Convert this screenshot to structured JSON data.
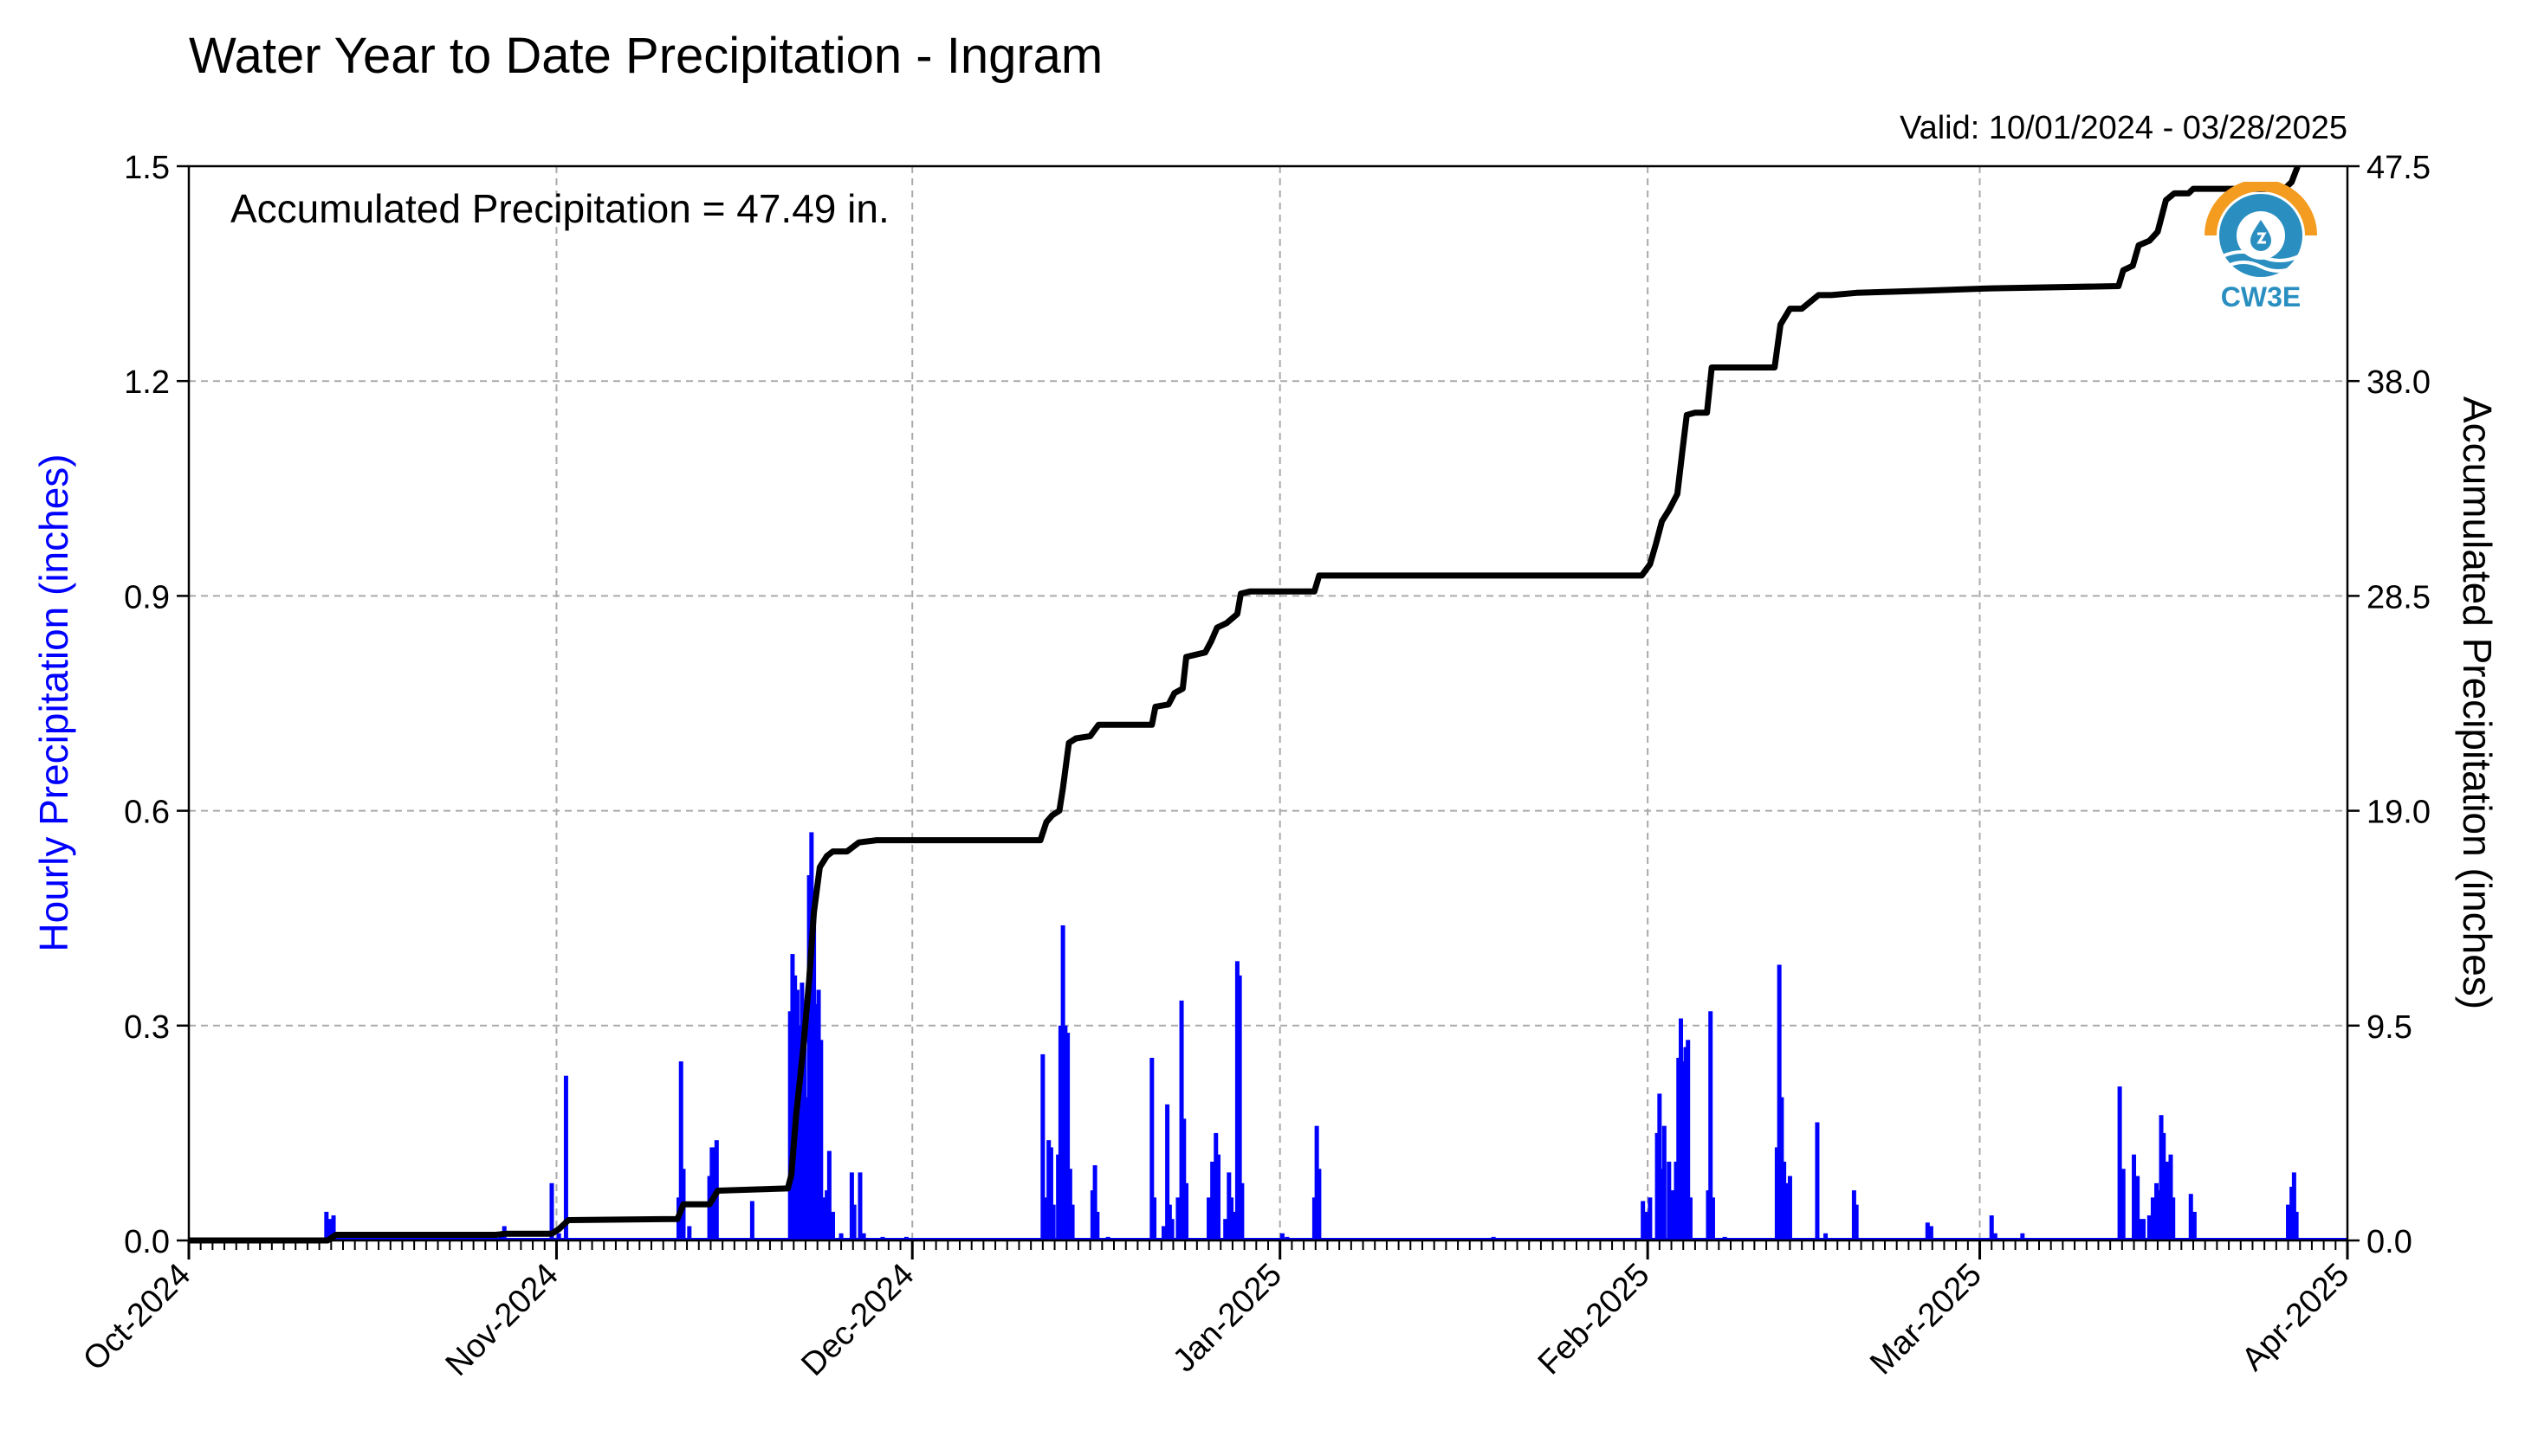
{
  "chart_data": {
    "type": "bar+line",
    "title": "Water Year to Date Precipitation - Ingram",
    "valid_label": "Valid: 10/01/2024 - 03/28/2025",
    "annotation": "Accumulated Precipitation = 47.49 in.",
    "ylabel_left": "Hourly Precipitation (inches)",
    "ylabel_right": "Accumulated Precipitation (inches)",
    "ylim_left": [
      0,
      1.5
    ],
    "ylim_right": [
      0,
      47.5
    ],
    "yticks_left": [
      "0.0",
      "0.3",
      "0.6",
      "0.9",
      "1.2",
      "1.5"
    ],
    "yticks_right": [
      "0.0",
      "9.5",
      "19.0",
      "28.5",
      "38.0",
      "47.5"
    ],
    "xlim_days": [
      0,
      182
    ],
    "x_month_ticks": [
      {
        "label": "Oct-2024",
        "day": 0
      },
      {
        "label": "Nov-2024",
        "day": 31
      },
      {
        "label": "Dec-2024",
        "day": 61
      },
      {
        "label": "Jan-2025",
        "day": 92
      },
      {
        "label": "Feb-2025",
        "day": 123
      },
      {
        "label": "Mar-2025",
        "day": 151
      },
      {
        "label": "Apr-2025",
        "day": 182
      }
    ],
    "grid": true,
    "colors": {
      "hourly": "#0000ff",
      "accumulated": "#000000",
      "grid": "#aaaaaa"
    },
    "hourly_series": {
      "name": "Hourly Precipitation (inches)",
      "points": [
        [
          11.6,
          0.04
        ],
        [
          11.9,
          0.03
        ],
        [
          12.2,
          0.035
        ],
        [
          26.3,
          0.01
        ],
        [
          26.6,
          0.02
        ],
        [
          30.6,
          0.08
        ],
        [
          31.2,
          0.01
        ],
        [
          31.8,
          0.23
        ],
        [
          41.3,
          0.06
        ],
        [
          41.5,
          0.25
        ],
        [
          41.7,
          0.1
        ],
        [
          42.2,
          0.02
        ],
        [
          43.9,
          0.09
        ],
        [
          44.1,
          0.13
        ],
        [
          44.3,
          0.13
        ],
        [
          44.5,
          0.14
        ],
        [
          47.5,
          0.055
        ],
        [
          50.7,
          0.32
        ],
        [
          50.9,
          0.4
        ],
        [
          51.1,
          0.37
        ],
        [
          51.3,
          0.35
        ],
        [
          51.5,
          0.3
        ],
        [
          51.7,
          0.36
        ],
        [
          51.9,
          0.27
        ],
        [
          52.1,
          0.2
        ],
        [
          52.3,
          0.51
        ],
        [
          52.5,
          0.57
        ],
        [
          52.7,
          0.48
        ],
        [
          52.9,
          0.33
        ],
        [
          53.1,
          0.35
        ],
        [
          53.3,
          0.28
        ],
        [
          53.5,
          0.06
        ],
        [
          53.8,
          0.07
        ],
        [
          54.0,
          0.125
        ],
        [
          54.3,
          0.04
        ],
        [
          55.0,
          0.01
        ],
        [
          55.9,
          0.095
        ],
        [
          56.1,
          0.05
        ],
        [
          56.6,
          0.095
        ],
        [
          56.9,
          0.01
        ],
        [
          58.5,
          0.005
        ],
        [
          60.5,
          0.005
        ],
        [
          72.0,
          0.26
        ],
        [
          72.3,
          0.06
        ],
        [
          72.5,
          0.14
        ],
        [
          72.7,
          0.13
        ],
        [
          72.9,
          0.05
        ],
        [
          73.3,
          0.12
        ],
        [
          73.5,
          0.3
        ],
        [
          73.7,
          0.44
        ],
        [
          73.9,
          0.3
        ],
        [
          74.1,
          0.29
        ],
        [
          74.3,
          0.1
        ],
        [
          74.5,
          0.05
        ],
        [
          76.2,
          0.07
        ],
        [
          76.4,
          0.105
        ],
        [
          76.6,
          0.04
        ],
        [
          77.5,
          0.005
        ],
        [
          81.2,
          0.255
        ],
        [
          81.4,
          0.06
        ],
        [
          82.2,
          0.02
        ],
        [
          82.5,
          0.19
        ],
        [
          82.7,
          0.05
        ],
        [
          82.9,
          0.03
        ],
        [
          83.4,
          0.06
        ],
        [
          83.7,
          0.335
        ],
        [
          83.9,
          0.17
        ],
        [
          84.1,
          0.08
        ],
        [
          86.0,
          0.06
        ],
        [
          86.3,
          0.11
        ],
        [
          86.6,
          0.15
        ],
        [
          86.8,
          0.12
        ],
        [
          87.4,
          0.03
        ],
        [
          87.7,
          0.095
        ],
        [
          87.9,
          0.06
        ],
        [
          88.2,
          0.04
        ],
        [
          88.4,
          0.39
        ],
        [
          88.6,
          0.37
        ],
        [
          88.8,
          0.08
        ],
        [
          92.2,
          0.01
        ],
        [
          92.6,
          0.005
        ],
        [
          94.9,
          0.06
        ],
        [
          95.1,
          0.16
        ],
        [
          95.3,
          0.1
        ],
        [
          110.0,
          0.005
        ],
        [
          122.6,
          0.055
        ],
        [
          122.9,
          0.04
        ],
        [
          123.2,
          0.06
        ],
        [
          123.8,
          0.15
        ],
        [
          124.0,
          0.205
        ],
        [
          124.2,
          0.1
        ],
        [
          124.4,
          0.16
        ],
        [
          124.8,
          0.11
        ],
        [
          125.0,
          0.07
        ],
        [
          125.2,
          0.07
        ],
        [
          125.4,
          0.11
        ],
        [
          125.6,
          0.255
        ],
        [
          125.8,
          0.31
        ],
        [
          126.0,
          0.25
        ],
        [
          126.2,
          0.27
        ],
        [
          126.4,
          0.28
        ],
        [
          126.6,
          0.06
        ],
        [
          128.1,
          0.07
        ],
        [
          128.3,
          0.32
        ],
        [
          128.5,
          0.06
        ],
        [
          129.5,
          0.005
        ],
        [
          133.9,
          0.13
        ],
        [
          134.1,
          0.385
        ],
        [
          134.3,
          0.2
        ],
        [
          134.5,
          0.11
        ],
        [
          134.7,
          0.08
        ],
        [
          135.0,
          0.09
        ],
        [
          137.3,
          0.165
        ],
        [
          138.0,
          0.01
        ],
        [
          140.4,
          0.07
        ],
        [
          140.6,
          0.05
        ],
        [
          146.6,
          0.025
        ],
        [
          146.9,
          0.02
        ],
        [
          152.0,
          0.035
        ],
        [
          152.3,
          0.01
        ],
        [
          154.6,
          0.01
        ],
        [
          162.8,
          0.215
        ],
        [
          163.1,
          0.1
        ],
        [
          164.0,
          0.12
        ],
        [
          164.3,
          0.09
        ],
        [
          164.5,
          0.03
        ],
        [
          164.8,
          0.03
        ],
        [
          165.3,
          0.035
        ],
        [
          165.6,
          0.06
        ],
        [
          165.9,
          0.08
        ],
        [
          166.1,
          0.07
        ],
        [
          166.3,
          0.175
        ],
        [
          166.5,
          0.15
        ],
        [
          166.8,
          0.11
        ],
        [
          167.1,
          0.12
        ],
        [
          167.3,
          0.06
        ],
        [
          168.8,
          0.065
        ],
        [
          169.1,
          0.04
        ],
        [
          177.0,
          0.05
        ],
        [
          177.3,
          0.075
        ],
        [
          177.5,
          0.095
        ],
        [
          177.7,
          0.04
        ]
      ]
    },
    "accumulated_series": {
      "name": "Accumulated Precipitation (inches)",
      "points": [
        [
          0,
          0
        ],
        [
          11.7,
          0.0
        ],
        [
          12.4,
          0.25
        ],
        [
          25.9,
          0.25
        ],
        [
          26.7,
          0.3
        ],
        [
          30.6,
          0.3
        ],
        [
          31.2,
          0.5
        ],
        [
          32.0,
          0.9
        ],
        [
          41.2,
          0.95
        ],
        [
          41.7,
          1.6
        ],
        [
          43.9,
          1.6
        ],
        [
          44.6,
          2.2
        ],
        [
          50.5,
          2.3
        ],
        [
          50.8,
          2.9
        ],
        [
          51.2,
          5.5
        ],
        [
          51.8,
          8.5
        ],
        [
          52.3,
          11.5
        ],
        [
          52.7,
          14.5
        ],
        [
          53.2,
          16.5
        ],
        [
          53.8,
          17.0
        ],
        [
          54.3,
          17.2
        ],
        [
          55.5,
          17.2
        ],
        [
          56.5,
          17.6
        ],
        [
          58,
          17.7
        ],
        [
          71.8,
          17.7
        ],
        [
          72.3,
          18.5
        ],
        [
          72.8,
          18.8
        ],
        [
          73.4,
          19.0
        ],
        [
          73.7,
          20.0
        ],
        [
          74.2,
          22.0
        ],
        [
          74.8,
          22.2
        ],
        [
          76.0,
          22.3
        ],
        [
          76.7,
          22.8
        ],
        [
          81.2,
          22.8
        ],
        [
          81.5,
          23.6
        ],
        [
          82.6,
          23.7
        ],
        [
          83.1,
          24.2
        ],
        [
          83.8,
          24.4
        ],
        [
          84.1,
          25.8
        ],
        [
          85.7,
          26.0
        ],
        [
          86.2,
          26.5
        ],
        [
          86.7,
          27.1
        ],
        [
          87.5,
          27.3
        ],
        [
          88.4,
          27.7
        ],
        [
          88.7,
          28.6
        ],
        [
          89.5,
          28.7
        ],
        [
          94.9,
          28.7
        ],
        [
          95.3,
          29.4
        ],
        [
          122.5,
          29.4
        ],
        [
          123.2,
          29.9
        ],
        [
          123.7,
          30.8
        ],
        [
          124.2,
          31.8
        ],
        [
          124.8,
          32.3
        ],
        [
          125.5,
          33.0
        ],
        [
          125.9,
          34.8
        ],
        [
          126.3,
          36.5
        ],
        [
          127.0,
          36.6
        ],
        [
          128.0,
          36.6
        ],
        [
          128.4,
          38.6
        ],
        [
          133.7,
          38.6
        ],
        [
          134.2,
          40.5
        ],
        [
          135.0,
          41.2
        ],
        [
          136.0,
          41.2
        ],
        [
          137.4,
          41.8
        ],
        [
          138.5,
          41.8
        ],
        [
          140.6,
          41.9
        ],
        [
          146.5,
          42.0
        ],
        [
          152.0,
          42.1
        ],
        [
          162.7,
          42.2
        ],
        [
          163.1,
          42.9
        ],
        [
          163.9,
          43.1
        ],
        [
          164.4,
          44.0
        ],
        [
          165.3,
          44.2
        ],
        [
          166.0,
          44.6
        ],
        [
          166.7,
          46.0
        ],
        [
          167.4,
          46.3
        ],
        [
          168.6,
          46.3
        ],
        [
          169.0,
          46.5
        ],
        [
          176.7,
          46.5
        ],
        [
          177.3,
          46.8
        ],
        [
          177.8,
          47.49
        ]
      ]
    }
  },
  "logo": {
    "text": "CW3E",
    "colors": {
      "orange": "#f39c1f",
      "blue": "#2a8fc0"
    }
  }
}
